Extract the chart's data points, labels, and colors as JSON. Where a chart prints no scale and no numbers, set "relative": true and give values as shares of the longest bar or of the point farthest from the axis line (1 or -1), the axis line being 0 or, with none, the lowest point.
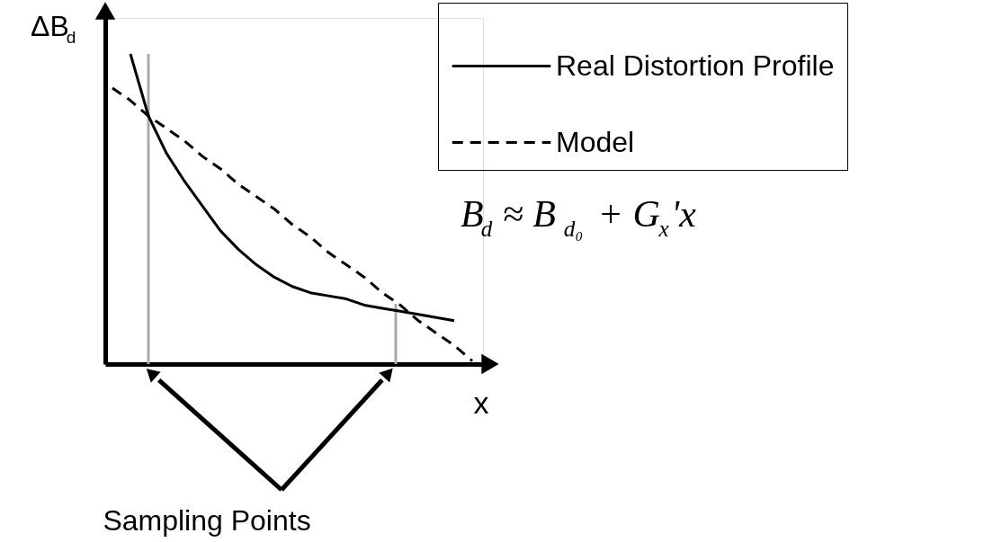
{
  "chart_data": {
    "type": "line",
    "ylabel": "ΔB$_{d}$",
    "xlabel": "x",
    "categories": [
      null,
      null,
      null,
      null,
      null,
      null,
      null,
      null,
      null,
      null,
      null,
      null,
      null,
      null,
      null,
      null,
      null,
      null,
      null,
      null,
      null
    ],
    "relative": true,
    "legend": "top right",
    "series": [
      {
        "name": "Real Distortion Profile",
        "color": "#000000",
        "line_style": "solid",
        "values": [
          null,
          1,
          0.8,
          0.68,
          0.59,
          0.51,
          0.43,
          0.37,
          0.32,
          0.28,
          0.25,
          0.23,
          0.22,
          0.21,
          0.19,
          0.18,
          0.17,
          0.16,
          0.15,
          0.14,
          null
        ]
      },
      {
        "name": "Model",
        "color": "#000000",
        "line_style": "dashed",
        "values": [
          0.89,
          0.85,
          0.8,
          0.76,
          0.72,
          0.67,
          0.63,
          0.58,
          0.54,
          0.5,
          0.45,
          0.41,
          0.36,
          0.32,
          0.28,
          0.23,
          0.19,
          0.14,
          0.1,
          0.06,
          0.01
        ]
      }
    ],
    "annotations": [
      "B$_{d}$ ≈ B$_{d₀}$ + G$_{x}$'x",
      "Sampling Points"
    ]
  }
}
